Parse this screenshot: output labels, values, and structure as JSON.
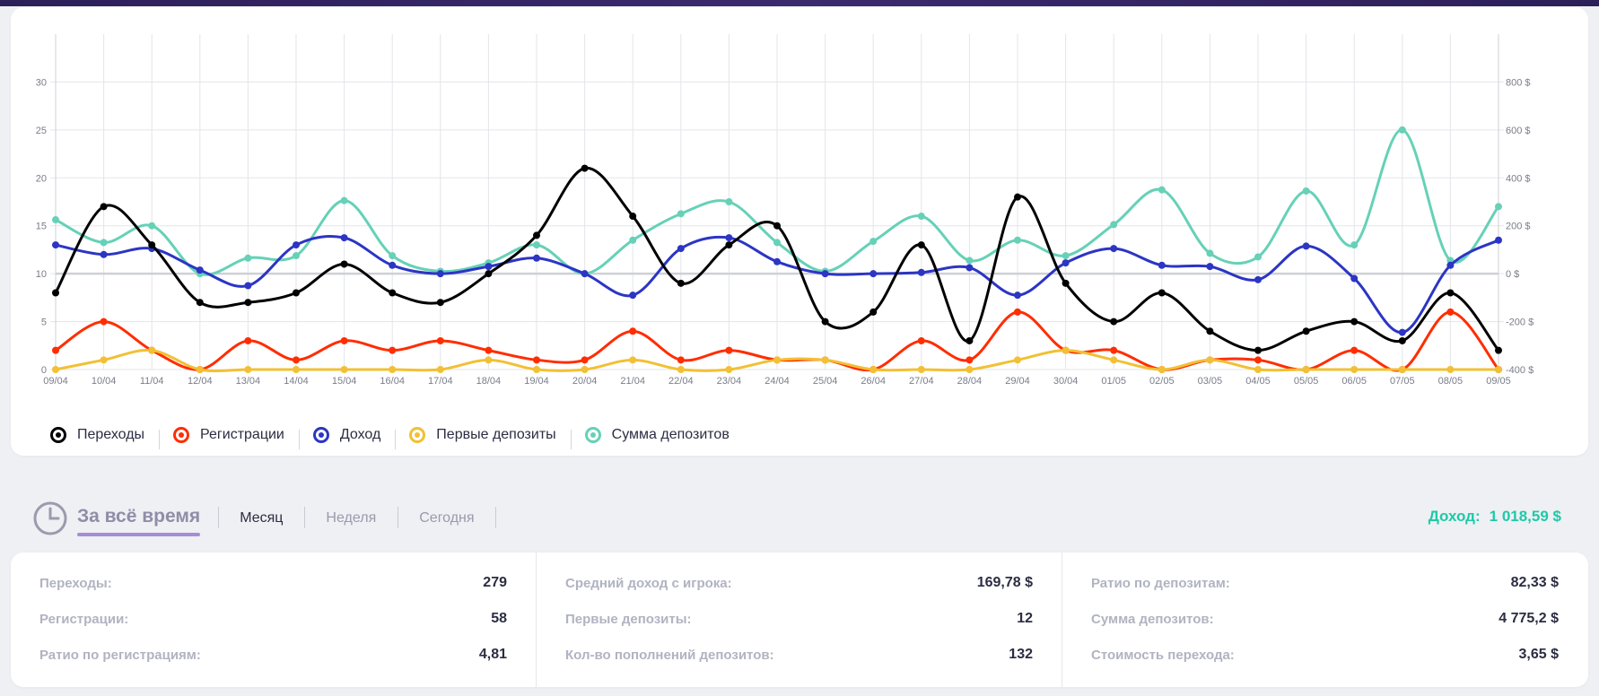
{
  "chart_data": {
    "type": "line",
    "x": [
      "09/04",
      "10/04",
      "11/04",
      "12/04",
      "13/04",
      "14/04",
      "15/04",
      "16/04",
      "17/04",
      "18/04",
      "19/04",
      "20/04",
      "21/04",
      "22/04",
      "23/04",
      "24/04",
      "25/04",
      "26/04",
      "27/04",
      "28/04",
      "29/04",
      "30/04",
      "01/05",
      "02/05",
      "03/05",
      "04/05",
      "05/05",
      "06/05",
      "07/05",
      "08/05",
      "09/05"
    ],
    "left_axis": {
      "ylim": [
        0,
        35
      ],
      "ticks": [
        0,
        5,
        10,
        15,
        20,
        25,
        30
      ]
    },
    "right_axis": {
      "ylim": [
        -400,
        1000
      ],
      "ticks": [
        "-400 $",
        "-200 $",
        "0 $",
        "200 $",
        "400 $",
        "600 $",
        "800 $"
      ],
      "tick_values": [
        -400,
        -200,
        0,
        200,
        400,
        600,
        800
      ]
    },
    "grid": true,
    "legend_position": "bottom-left",
    "series": [
      {
        "name": "Переходы",
        "axis": "left",
        "color": "#000000",
        "values": [
          8,
          17,
          13,
          7,
          7,
          8,
          11,
          8,
          7,
          10,
          14,
          21,
          16,
          9,
          13,
          15,
          5,
          6,
          13,
          3,
          18,
          9,
          5,
          8,
          4,
          2,
          4,
          5,
          3,
          8,
          2
        ]
      },
      {
        "name": "Регистрации",
        "axis": "left",
        "color": "#ff2d00",
        "values": [
          2,
          5,
          2,
          0,
          3,
          1,
          3,
          2,
          3,
          2,
          1,
          1,
          4,
          1,
          2,
          1,
          1,
          0,
          3,
          1,
          6,
          2,
          2,
          0,
          1,
          1,
          0,
          2,
          0,
          6,
          0
        ]
      },
      {
        "name": "Доход",
        "axis": "right",
        "color": "#2c35c4",
        "values": [
          120,
          80,
          105,
          15,
          -50,
          120,
          150,
          35,
          0,
          30,
          65,
          0,
          -90,
          105,
          150,
          50,
          0,
          0,
          5,
          25,
          -90,
          45,
          105,
          35,
          30,
          -25,
          115,
          -20,
          -245,
          35,
          140
        ]
      },
      {
        "name": "Первые депозиты",
        "axis": "left",
        "color": "#f2c035",
        "values": [
          0,
          1,
          2,
          0,
          0,
          0,
          0,
          0,
          0,
          1,
          0,
          0,
          1,
          0,
          0,
          1,
          1,
          0,
          0,
          0,
          1,
          2,
          1,
          0,
          1,
          0,
          0,
          0,
          0,
          0,
          0
        ]
      },
      {
        "name": "Сумма депозитов",
        "axis": "right",
        "color": "#66d1b7",
        "values": [
          225,
          130,
          200,
          0,
          65,
          75,
          305,
          75,
          10,
          45,
          120,
          0,
          140,
          250,
          300,
          130,
          10,
          135,
          240,
          55,
          140,
          75,
          205,
          350,
          85,
          70,
          345,
          120,
          600,
          55,
          280
        ]
      }
    ]
  },
  "period": {
    "active": "За всё время",
    "tabs": [
      {
        "label": "Месяц",
        "state": "selected"
      },
      {
        "label": "Неделя",
        "state": "muted"
      },
      {
        "label": "Сегодня",
        "state": "muted"
      }
    ]
  },
  "income": {
    "label": "Доход:",
    "value": "1 018,59 $"
  },
  "stats": {
    "col1": [
      {
        "label": "Переходы:",
        "value": "279"
      },
      {
        "label": "Регистрации:",
        "value": "58"
      },
      {
        "label": "Ратио по регистрациям:",
        "value": "4,81"
      }
    ],
    "col2": [
      {
        "label": "Средний доход с игрока:",
        "value": "169,78 $"
      },
      {
        "label": "Первые депозиты:",
        "value": "12"
      },
      {
        "label": "Кол-во пополнений депозитов:",
        "value": "132"
      }
    ],
    "col3": [
      {
        "label": "Ратио по депозитам:",
        "value": "82,33 $"
      },
      {
        "label": "Сумма депозитов:",
        "value": "4 775,2 $"
      },
      {
        "label": "Стоимость перехода:",
        "value": "3,65 $"
      }
    ]
  },
  "icons": {
    "period_icon": "clock-icon"
  }
}
